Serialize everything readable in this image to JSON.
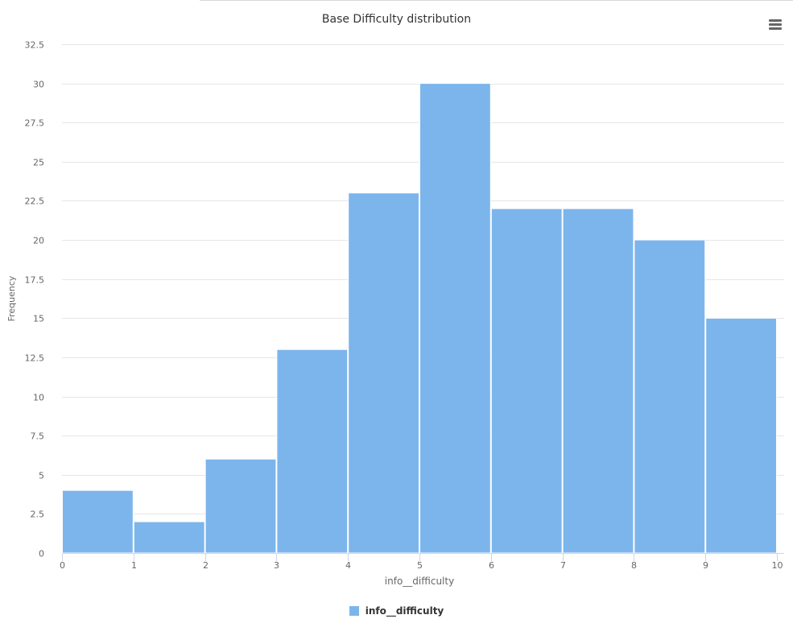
{
  "chart_data": {
    "type": "bar",
    "title": "Base Difficulty distribution",
    "xlabel": "info__difficulty",
    "ylabel": "Frequency",
    "bins": [
      {
        "from": 0,
        "to": 1,
        "value": 4
      },
      {
        "from": 1,
        "to": 2,
        "value": 2
      },
      {
        "from": 2,
        "to": 3,
        "value": 6
      },
      {
        "from": 3,
        "to": 4,
        "value": 13
      },
      {
        "from": 4,
        "to": 5,
        "value": 23
      },
      {
        "from": 5,
        "to": 6,
        "value": 30
      },
      {
        "from": 6,
        "to": 7,
        "value": 22
      },
      {
        "from": 7,
        "to": 8,
        "value": 22
      },
      {
        "from": 8,
        "to": 9,
        "value": 20
      },
      {
        "from": 9,
        "to": 10,
        "value": 15
      }
    ],
    "xlim": [
      0,
      10
    ],
    "ylim": [
      0,
      32.5
    ],
    "x_ticks": [
      "0",
      "1",
      "2",
      "3",
      "4",
      "5",
      "6",
      "7",
      "8",
      "9",
      "10"
    ],
    "y_ticks": [
      "0",
      "2.5",
      "5",
      "7.5",
      "10",
      "12.5",
      "15",
      "17.5",
      "20",
      "22.5",
      "25",
      "27.5",
      "30",
      "32.5"
    ],
    "series": [
      {
        "name": "info__difficulty",
        "color": "#7cb5ec"
      }
    ],
    "grid": true,
    "legend": "bottom-center"
  },
  "menu_icon": "hamburger-menu-icon"
}
